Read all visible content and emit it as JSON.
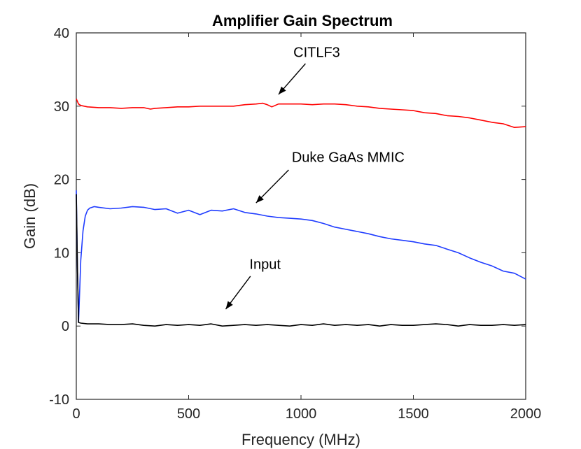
{
  "chart_data": {
    "type": "line",
    "title": "Amplifier Gain Spectrum",
    "xlabel": "Frequency (MHz)",
    "ylabel": "Gain (dB)",
    "xlim": [
      0,
      2000
    ],
    "ylim": [
      -10,
      40
    ],
    "xticks": [
      0,
      500,
      1000,
      1500,
      2000
    ],
    "yticks": [
      -10,
      0,
      10,
      20,
      30,
      40
    ],
    "grid": false,
    "legend": "none",
    "series": [
      {
        "name": "CITLF3",
        "color": "#ff0000",
        "x": [
          0,
          10,
          20,
          50,
          100,
          150,
          200,
          250,
          300,
          330,
          350,
          400,
          450,
          500,
          550,
          600,
          650,
          700,
          750,
          800,
          830,
          850,
          870,
          900,
          950,
          1000,
          1050,
          1100,
          1150,
          1200,
          1250,
          1300,
          1350,
          1400,
          1450,
          1500,
          1550,
          1600,
          1650,
          1700,
          1750,
          1800,
          1850,
          1900,
          1950,
          2000
        ],
        "y": [
          31.0,
          30.3,
          30.1,
          29.9,
          29.8,
          29.8,
          29.7,
          29.8,
          29.8,
          29.6,
          29.7,
          29.8,
          29.9,
          29.9,
          30.0,
          30.0,
          30.0,
          30.0,
          30.2,
          30.3,
          30.4,
          30.2,
          29.9,
          30.3,
          30.3,
          30.3,
          30.2,
          30.3,
          30.3,
          30.2,
          30.0,
          29.9,
          29.7,
          29.6,
          29.5,
          29.4,
          29.1,
          29.0,
          28.7,
          28.6,
          28.4,
          28.1,
          27.8,
          27.6,
          27.1,
          27.2
        ]
      },
      {
        "name": "Duke GaAs MMIC",
        "color": "#1f3cff",
        "x": [
          0,
          5,
          10,
          20,
          30,
          40,
          50,
          60,
          80,
          100,
          150,
          200,
          250,
          300,
          350,
          400,
          450,
          500,
          550,
          600,
          650,
          700,
          750,
          800,
          850,
          900,
          950,
          1000,
          1050,
          1100,
          1150,
          1200,
          1250,
          1300,
          1350,
          1400,
          1450,
          1500,
          1550,
          1600,
          1650,
          1700,
          1750,
          1800,
          1850,
          1900,
          1950,
          2000
        ],
        "y": [
          18.5,
          8.0,
          0.5,
          9.0,
          13.0,
          15.0,
          15.8,
          16.1,
          16.3,
          16.2,
          16.0,
          16.1,
          16.3,
          16.2,
          15.9,
          16.0,
          15.4,
          15.8,
          15.2,
          15.8,
          15.7,
          16.0,
          15.5,
          15.3,
          15.0,
          14.8,
          14.7,
          14.6,
          14.4,
          14.0,
          13.5,
          13.2,
          12.9,
          12.6,
          12.2,
          11.9,
          11.7,
          11.5,
          11.2,
          11.0,
          10.5,
          10.0,
          9.3,
          8.7,
          8.2,
          7.5,
          7.2,
          6.4
        ]
      },
      {
        "name": "Input",
        "color": "#000000",
        "x": [
          0,
          5,
          10,
          20,
          50,
          100,
          150,
          200,
          250,
          300,
          350,
          400,
          450,
          500,
          550,
          600,
          650,
          700,
          750,
          800,
          850,
          900,
          950,
          1000,
          1050,
          1100,
          1150,
          1200,
          1250,
          1300,
          1350,
          1400,
          1450,
          1500,
          1550,
          1600,
          1650,
          1700,
          1750,
          1800,
          1850,
          1900,
          1950,
          2000
        ],
        "y": [
          18.0,
          8.0,
          0.5,
          0.4,
          0.3,
          0.3,
          0.2,
          0.2,
          0.3,
          0.1,
          0.0,
          0.2,
          0.1,
          0.2,
          0.1,
          0.3,
          0.0,
          0.1,
          0.2,
          0.1,
          0.2,
          0.1,
          0.0,
          0.2,
          0.1,
          0.3,
          0.1,
          0.2,
          0.1,
          0.2,
          0.0,
          0.2,
          0.1,
          0.1,
          0.2,
          0.3,
          0.2,
          0.0,
          0.2,
          0.1,
          0.1,
          0.2,
          0.1,
          0.2
        ]
      }
    ],
    "annotations": [
      {
        "text": "CITLF3",
        "text_x": 1070,
        "text_y": 36.7,
        "arrow_from": [
          1020,
          35.8
        ],
        "arrow_to": [
          900,
          31.6
        ]
      },
      {
        "text": "Duke GaAs MMIC",
        "text_x": 1210,
        "text_y": 22.4,
        "arrow_from": [
          945,
          21.3
        ],
        "arrow_to": [
          800,
          16.8
        ]
      },
      {
        "text": "Input",
        "text_x": 840,
        "text_y": 7.8,
        "arrow_from": [
          775,
          6.8
        ],
        "arrow_to": [
          665,
          2.3
        ]
      }
    ]
  }
}
